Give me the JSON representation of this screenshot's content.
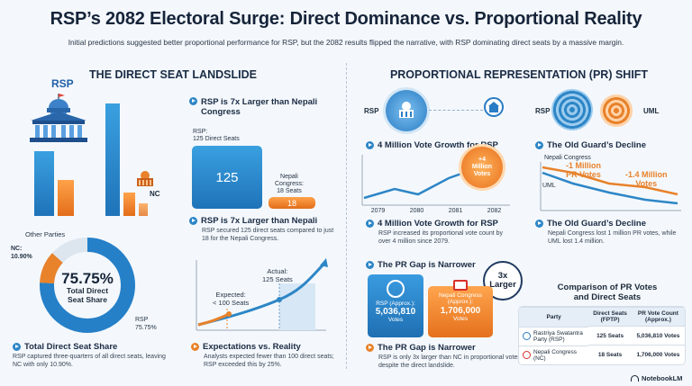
{
  "header": {
    "title": "RSP’s 2082 Electoral Surge: Direct Dominance vs. Proportional Reality",
    "subtitle": "Initial predictions suggested better proportional performance for RSP, but the 2082 results flipped the narrative, with RSP dominating direct seats by a massive margin."
  },
  "left": {
    "section_title": "THE DIRECT SEAT LANDSLIDE",
    "rsp_label": "RSP",
    "nc_label": "NC",
    "card1": {
      "heading": "RSP is 7x Larger than Nepali Congress",
      "rsp_label": "RSP:\n125 Direct Seats",
      "rsp_value": "125",
      "nc_label": "Nepali\nCongress:\n18 Seats",
      "nc_value": "18"
    },
    "card2": {
      "heading": "RSP is 7x Larger than Nepali",
      "desc": "RSP secured 125 direct seats compared to just 18 for the Nepali Congress."
    },
    "donut": {
      "other_label": "Other Parties",
      "nc_label": "NC:\n10.90%",
      "center_value": "75.75%",
      "center_label": "Total Direct\nSeat Share",
      "rsp_label": "RSP\n75.75%",
      "rsp_share": 75.75,
      "nc_share": 10.9,
      "other_share": 13.35
    },
    "donut_caption": {
      "heading": "Total Direct Seat Share",
      "desc": "RSP captured three-quarters of all direct seats, leaving NC with only 10.90%."
    },
    "expect": {
      "actual_label": "Actual:\n125 Seats",
      "expected_label": "Expected:\n< 100 Seats",
      "heading": "Expectations vs. Reality",
      "desc": "Analysts expected fewer than 100 direct seats; RSP exceeded this by 25%."
    }
  },
  "right": {
    "section_title": "PROPORTIONAL REPRESENTATION (PR) SHIFT",
    "rsp_icon_label": "RSP",
    "growth": {
      "heading": "4 Million Vote Growth for RSP",
      "badge": "+4\nMillion\nVotes",
      "years": [
        "2079",
        "2080",
        "2081",
        "2082"
      ],
      "heading2": "4 Million Vote Growth for RSP",
      "desc": "RSP increased its proportional vote count by over 4 million since 2079."
    },
    "decline": {
      "rsp_label": "RSP",
      "uml_label": "UML",
      "heading": "The Old Guard’s Decline",
      "nc_label": "Nepali Congress",
      "nc_drop": "-1 Million\nPR Votes",
      "uml_line_label": "UML",
      "uml_drop": "-1.4 Million\nVotes",
      "heading2": "The Old Guard’s Decline",
      "desc": "Nepali Congress lost 1 million PR votes, while UML lost 1.4 million."
    },
    "gap": {
      "heading": "The PR Gap is Narrower",
      "badge": "3x\nLarger",
      "rsp_label": "RSP (Approx.):",
      "rsp_value": "5,036,810",
      "rsp_unit": "Votes",
      "nc_label": "Nepali Congress\n(Approx.):",
      "nc_value": "1,706,000",
      "nc_unit": "Votes",
      "heading2": "The PR Gap is Narrower",
      "desc": "RSP is only 3x larger than NC in proportional votes, despite the direct landslide."
    },
    "table": {
      "title": "Comparison of PR Votes\nand Direct Seats",
      "headers": [
        "Party",
        "Direct Seats (FPTP)",
        "PR Vote Count (Approx.)"
      ],
      "rows": [
        {
          "party": "Rastriya Swatantra Party (RSP)",
          "seats": "125 Seats",
          "votes": "5,036,810 Votes"
        },
        {
          "party": "Nepali Congress (NC)",
          "seats": "18 Seats",
          "votes": "1,706,000 Votes"
        }
      ]
    }
  },
  "footer": {
    "brand": "NotebookLM"
  },
  "colors": {
    "blue": "#1f73b8",
    "orange": "#e8822b",
    "navy": "#16243a"
  }
}
